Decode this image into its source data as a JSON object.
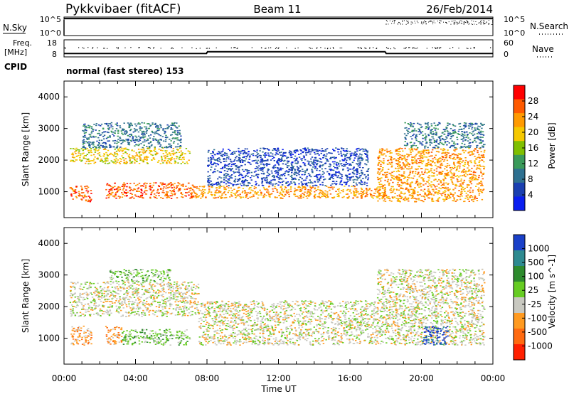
{
  "header": {
    "station": "Pykkvibaer (fitACF)",
    "beam": "Beam 11",
    "date": "26/Feb/2014"
  },
  "noise_panel": {
    "left_label": "N.Sky",
    "right_label": "N.Search",
    "left_ticks": [
      "10^5",
      "10^0"
    ],
    "right_ticks": [
      "10^5",
      "10^0"
    ]
  },
  "freq_panel": {
    "left_label_1": "Freq.",
    "left_label_2": "[MHz]",
    "left_ticks": [
      "18",
      "8"
    ],
    "right_label": "Nave",
    "right_ticks": [
      "60",
      "0"
    ],
    "cpid_label": "CPID",
    "cpid_text": "normal (fast stereo) 153"
  },
  "power_colorbar": {
    "label": "Power [dB]",
    "ticks": [
      "28",
      "24",
      "20",
      "16",
      "12",
      "8",
      "4"
    ],
    "colors": [
      "#ff0000",
      "#ff5a00",
      "#ff9a00",
      "#f5c800",
      "#7fbf00",
      "#3a9a5a",
      "#2e7090",
      "#1a3fb0",
      "#0a1ef0"
    ]
  },
  "velocity_colorbar": {
    "label": "Velocity [m s^-1]",
    "ticks": [
      "1000",
      "500",
      "100",
      "25",
      "-25",
      "-100",
      "-500",
      "-1000"
    ],
    "colors": [
      "#1a40c8",
      "#2e8a90",
      "#2e8b2e",
      "#66cc22",
      "#c8c8c0",
      "#ff9a20",
      "#ff6a10",
      "#ff2000"
    ]
  },
  "x_axis": {
    "label": "Time UT",
    "ticks": [
      "00:00",
      "04:00",
      "08:00",
      "12:00",
      "16:00",
      "20:00",
      "00:00"
    ]
  },
  "chart_data": [
    {
      "type": "line",
      "title": "N.Sky / N.Search",
      "yscale": "log",
      "ylim": [
        1,
        100000
      ],
      "x": [
        0,
        4,
        8,
        12,
        16,
        20,
        24
      ],
      "series": [
        {
          "name": "N.Sky",
          "values": [
            40000,
            40000,
            40000,
            40000,
            40000,
            40000,
            40000
          ]
        }
      ]
    },
    {
      "type": "line",
      "title": "Freq. [MHz] / Nave",
      "ylim": [
        8,
        18
      ],
      "x": [
        0,
        8,
        8,
        18,
        18,
        24
      ],
      "series": [
        {
          "name": "Freq.",
          "values": [
            10,
            10,
            11,
            11,
            10,
            10
          ]
        }
      ]
    },
    {
      "type": "heatmap",
      "title": "Power [dB]",
      "xlabel": "Time UT",
      "ylabel": "Slant Range [km]",
      "xlim": [
        0,
        24
      ],
      "ylim": [
        180,
        4500
      ],
      "color_ticks": [
        4,
        8,
        12,
        16,
        20,
        24,
        28
      ],
      "bands": [
        {
          "x0": 0.3,
          "x1": 1.5,
          "y0": 700,
          "y1": 1200,
          "level": 1
        },
        {
          "x0": 2.3,
          "x1": 7.3,
          "y0": 800,
          "y1": 1300,
          "level": 1
        },
        {
          "x0": 0.3,
          "x1": 7.0,
          "y0": 1900,
          "y1": 2400,
          "level": 3
        },
        {
          "x0": 1.0,
          "x1": 6.5,
          "y0": 2400,
          "y1": 3200,
          "level": 6
        },
        {
          "x0": 7.0,
          "x1": 18.0,
          "y0": 800,
          "y1": 1200,
          "level": 2
        },
        {
          "x0": 8.0,
          "x1": 17.0,
          "y0": 1200,
          "y1": 2400,
          "level": 7
        },
        {
          "x0": 17.5,
          "x1": 23.5,
          "y0": 700,
          "y1": 2400,
          "level": 2
        },
        {
          "x0": 19.0,
          "x1": 23.5,
          "y0": 2400,
          "y1": 3200,
          "level": 6
        }
      ]
    },
    {
      "type": "heatmap",
      "title": "Velocity [m s^-1]",
      "xlabel": "Time UT",
      "ylabel": "Slant Range [km]",
      "xlim": [
        0,
        24
      ],
      "ylim": [
        180,
        4500
      ],
      "color_ticks": [
        1000,
        500,
        100,
        25,
        -25,
        -100,
        -500,
        -1000
      ],
      "bands": [
        {
          "x0": 0.3,
          "x1": 1.5,
          "y0": 800,
          "y1": 1400,
          "level": 5
        },
        {
          "x0": 2.3,
          "x1": 3.2,
          "y0": 800,
          "y1": 1400,
          "level": 5
        },
        {
          "x0": 3.2,
          "x1": 7.0,
          "y0": 800,
          "y1": 1300,
          "level": 3
        },
        {
          "x0": 0.3,
          "x1": 7.5,
          "y0": 1700,
          "y1": 2800,
          "level": 4
        },
        {
          "x0": 2.5,
          "x1": 6.0,
          "y0": 2800,
          "y1": 3200,
          "level": 3
        },
        {
          "x0": 7.5,
          "x1": 23.5,
          "y0": 800,
          "y1": 2200,
          "level": 4
        },
        {
          "x0": 20.0,
          "x1": 21.5,
          "y0": 800,
          "y1": 1400,
          "level": 0
        },
        {
          "x0": 17.5,
          "x1": 23.5,
          "y0": 2200,
          "y1": 3200,
          "level": 4
        }
      ]
    }
  ]
}
